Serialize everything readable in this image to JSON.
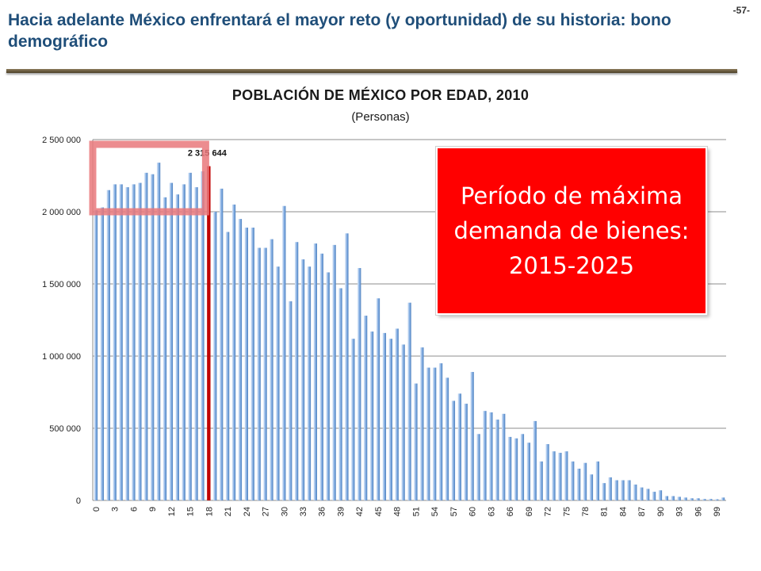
{
  "slide": {
    "title": "Hacia adelante México enfrentará el mayor reto (y oportunidad) de su historia: bono demográfico",
    "page_number": "-57-"
  },
  "chart_data": {
    "type": "bar",
    "title": "POBLACIÓN DE MÉXICO POR EDAD, 2010",
    "subtitle": "(Personas)",
    "xlabel": "",
    "ylabel": "",
    "ylim": [
      0,
      2500000
    ],
    "yticks": [
      0,
      500000,
      1000000,
      1500000,
      2000000,
      2500000
    ],
    "ytick_labels": [
      "0",
      "500 000",
      "1 000 000",
      "1 500 000",
      "2 000 000",
      "2 500 000"
    ],
    "xtick_step": 3,
    "grid": true,
    "categories": [
      "0",
      "1",
      "2",
      "3",
      "4",
      "5",
      "6",
      "7",
      "8",
      "9",
      "10",
      "11",
      "12",
      "13",
      "14",
      "15",
      "16",
      "17",
      "18",
      "19",
      "20",
      "21",
      "22",
      "23",
      "24",
      "25",
      "26",
      "27",
      "28",
      "29",
      "30",
      "31",
      "32",
      "33",
      "34",
      "35",
      "36",
      "37",
      "38",
      "39",
      "40",
      "41",
      "42",
      "43",
      "44",
      "45",
      "46",
      "47",
      "48",
      "49",
      "50",
      "51",
      "52",
      "53",
      "54",
      "55",
      "56",
      "57",
      "58",
      "59",
      "60",
      "61",
      "62",
      "63",
      "64",
      "65",
      "66",
      "67",
      "68",
      "69",
      "70",
      "71",
      "72",
      "73",
      "74",
      "75",
      "76",
      "77",
      "78",
      "79",
      "80",
      "81",
      "82",
      "83",
      "84",
      "85",
      "86",
      "87",
      "88",
      "89",
      "90",
      "91",
      "92",
      "93",
      "94",
      "95",
      "96",
      "97",
      "98",
      "99",
      "100"
    ],
    "values": [
      2010000,
      2030000,
      2150000,
      2190000,
      2190000,
      2170000,
      2190000,
      2200000,
      2270000,
      2260000,
      2340000,
      2100000,
      2200000,
      2120000,
      2190000,
      2270000,
      2170000,
      2280000,
      2315644,
      2000000,
      2160000,
      1860000,
      2050000,
      1950000,
      1890000,
      1890000,
      1750000,
      1750000,
      1810000,
      1620000,
      2040000,
      1380000,
      1790000,
      1670000,
      1620000,
      1780000,
      1710000,
      1580000,
      1770000,
      1470000,
      1850000,
      1120000,
      1610000,
      1280000,
      1170000,
      1400000,
      1160000,
      1120000,
      1190000,
      1080000,
      1370000,
      810000,
      1060000,
      920000,
      920000,
      950000,
      850000,
      690000,
      740000,
      670000,
      890000,
      460000,
      620000,
      610000,
      560000,
      600000,
      440000,
      430000,
      460000,
      400000,
      550000,
      270000,
      390000,
      340000,
      330000,
      340000,
      270000,
      220000,
      260000,
      180000,
      270000,
      120000,
      160000,
      140000,
      140000,
      140000,
      110000,
      90000,
      80000,
      60000,
      70000,
      30000,
      30000,
      25000,
      20000,
      15000,
      15000,
      10000,
      10000,
      8000,
      20000
    ],
    "highlight": {
      "category": "18",
      "value": 2315644,
      "label": "2 315 644",
      "color": "#c00000"
    },
    "bar_color": "#7aa7df",
    "box_color": "#e9787b"
  },
  "callout": {
    "text": "Período de máxima demanda de bienes: 2015-2025",
    "background": "#ff0000"
  }
}
